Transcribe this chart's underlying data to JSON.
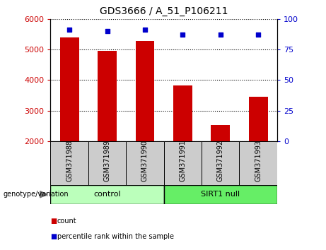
{
  "title": "GDS3666 / A_51_P106211",
  "samples": [
    "GSM371988",
    "GSM371989",
    "GSM371990",
    "GSM371991",
    "GSM371992",
    "GSM371993"
  ],
  "counts": [
    5400,
    4950,
    5270,
    3820,
    2530,
    3460
  ],
  "percentile_ranks": [
    91,
    90,
    91,
    87,
    87,
    87
  ],
  "ylim_left": [
    2000,
    6000
  ],
  "ylim_right": [
    0,
    100
  ],
  "yticks_left": [
    2000,
    3000,
    4000,
    5000,
    6000
  ],
  "yticks_right": [
    0,
    25,
    50,
    75,
    100
  ],
  "bar_color": "#cc0000",
  "dot_color": "#0000cc",
  "control_color": "#bbffbb",
  "sirt_color": "#66ee66",
  "sample_box_color": "#cccccc",
  "control_label": "control",
  "sirt_label": "SIRT1 null",
  "genotype_label": "genotype/variation",
  "legend_count": "count",
  "legend_percentile": "percentile rank within the sample",
  "bar_width": 0.5
}
